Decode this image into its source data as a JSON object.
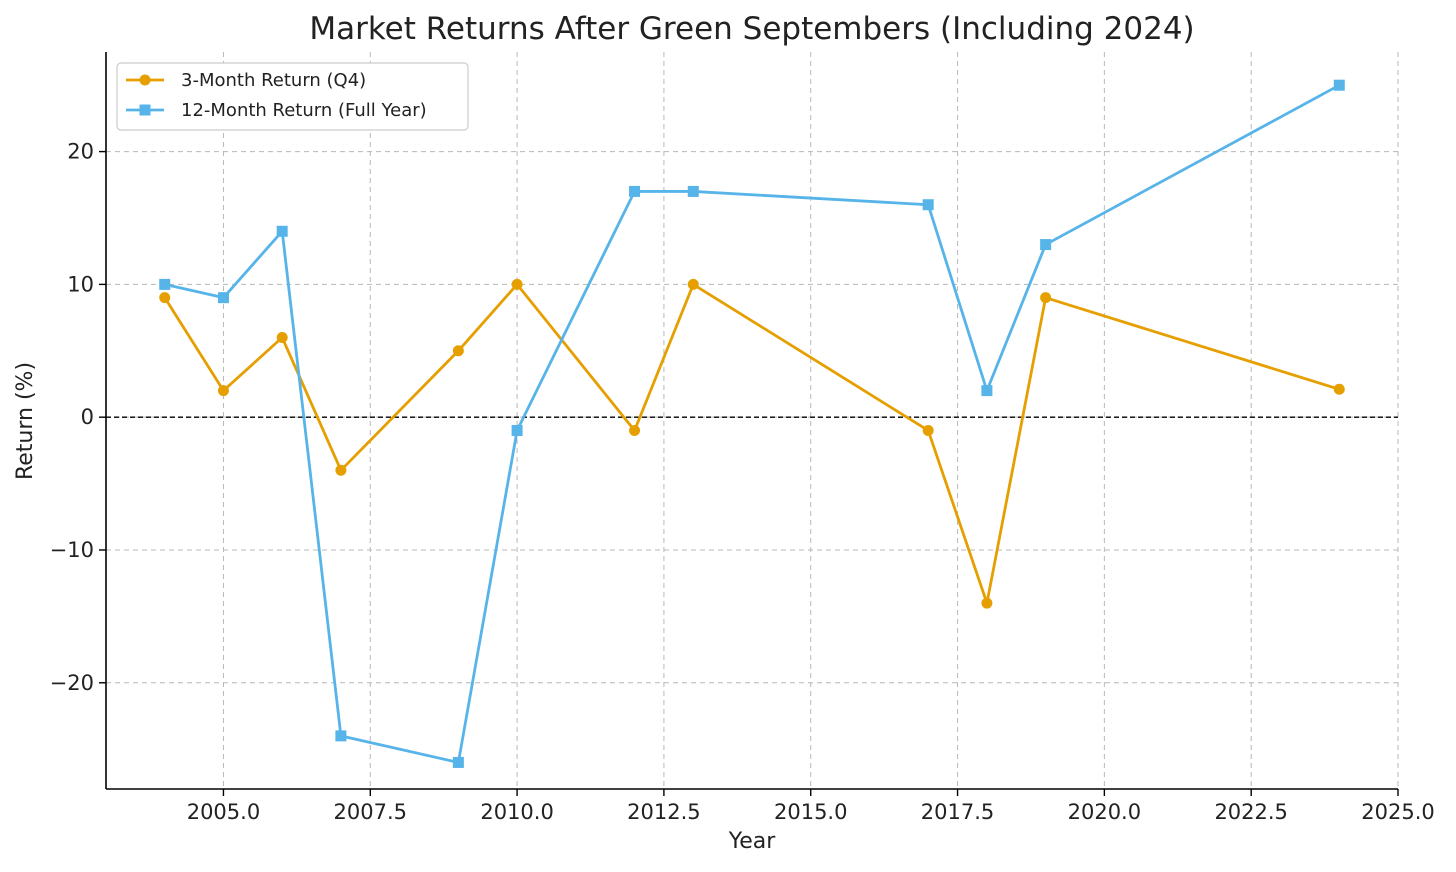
{
  "chart_data": {
    "type": "line",
    "title": "Market Returns After Green Septembers (Including 2024)",
    "xlabel": "Year",
    "ylabel": "Return (%)",
    "xlim": [
      2003,
      2025
    ],
    "ylim": [
      -28,
      27.5
    ],
    "xticks": [
      2005.0,
      2007.5,
      2010.0,
      2012.5,
      2015.0,
      2017.5,
      2020.0,
      2022.5,
      2025.0
    ],
    "xtick_labels": [
      "2005.0",
      "2007.5",
      "2010.0",
      "2012.5",
      "2015.0",
      "2017.5",
      "2020.0",
      "2022.5",
      "2025.0"
    ],
    "yticks": [
      -20,
      -10,
      0,
      10,
      20
    ],
    "ytick_labels": [
      "−20",
      "−10",
      "0",
      "10",
      "20"
    ],
    "grid": true,
    "legend_position": "top-left",
    "reference_line": {
      "y": 0,
      "style": "dashed",
      "color": "#000000"
    },
    "x": [
      2004,
      2005,
      2006,
      2007,
      2009,
      2010,
      2012,
      2013,
      2017,
      2018,
      2019,
      2024
    ],
    "series": [
      {
        "name": "3-Month Return (Q4)",
        "color": "#E69F00",
        "marker": "circle",
        "values": [
          9,
          2,
          6,
          -4,
          5,
          10,
          -1,
          10,
          -1,
          -14,
          9,
          2.1
        ]
      },
      {
        "name": "12-Month Return (Full Year)",
        "color": "#56B4E9",
        "marker": "square",
        "values": [
          10,
          9,
          14,
          -24,
          -26,
          -1,
          17,
          17,
          16,
          2,
          13,
          25
        ]
      }
    ]
  }
}
